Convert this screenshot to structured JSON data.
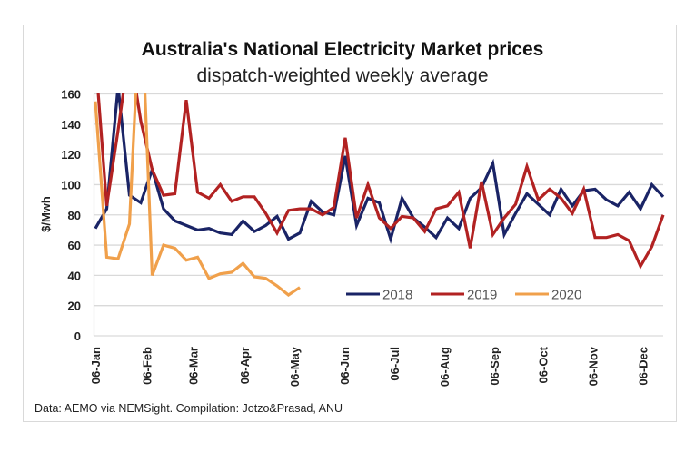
{
  "chart_data": {
    "type": "line",
    "title": "Australia's National Electricity Market prices",
    "subtitle": "dispatch-weighted weekly average",
    "xlabel": "",
    "ylabel": "$/Mwh",
    "ylim": [
      0,
      160
    ],
    "yticks": [
      0,
      20,
      40,
      60,
      80,
      100,
      120,
      140,
      160
    ],
    "grid": true,
    "legend_position": "bottom-right-inside",
    "x_ticks": [
      {
        "label": "06-Jan",
        "week": 0
      },
      {
        "label": "06-Feb",
        "week": 4.5
      },
      {
        "label": "06-Mar",
        "week": 8.6
      },
      {
        "label": "06-Apr",
        "week": 13.1
      },
      {
        "label": "06-May",
        "week": 17.5
      },
      {
        "label": "06-Jun",
        "week": 21.9
      },
      {
        "label": "06-Jul",
        "week": 26.3
      },
      {
        "label": "06-Aug",
        "week": 30.7
      },
      {
        "label": "06-Sep",
        "week": 35.1
      },
      {
        "label": "06-Oct",
        "week": 39.4
      },
      {
        "label": "06-Nov",
        "week": 43.8
      },
      {
        "label": "06-Dec",
        "week": 48.2
      }
    ],
    "x_weeks": 51,
    "series": [
      {
        "name": "2018",
        "color": "#1a2466",
        "values": [
          71,
          84,
          165,
          93,
          88,
          110,
          84,
          76,
          73,
          70,
          71,
          68,
          67,
          76,
          69,
          73,
          79,
          64,
          68,
          89,
          82,
          80,
          119,
          73,
          91,
          88,
          64,
          91,
          78,
          72,
          65,
          78,
          71,
          91,
          98,
          114,
          67,
          81,
          94,
          87,
          80,
          97,
          86,
          96,
          97,
          90,
          86,
          95,
          84,
          100,
          92
        ]
      },
      {
        "name": "2019",
        "color": "#b22222",
        "values": [
          185,
          86,
          136,
          190,
          142,
          110,
          93,
          94,
          156,
          95,
          91,
          100,
          89,
          92,
          92,
          81,
          68,
          83,
          84,
          84,
          80,
          85,
          131,
          78,
          100,
          78,
          71,
          79,
          78,
          69,
          84,
          86,
          95,
          58,
          102,
          67,
          78,
          87,
          112,
          90,
          97,
          91,
          81,
          97,
          65,
          65,
          67,
          63,
          46,
          59,
          80
        ]
      },
      {
        "name": "2020",
        "color": "#f0a04b",
        "values": [
          155,
          52,
          51,
          74,
          230,
          40,
          60,
          58,
          50,
          52,
          38,
          41,
          42,
          48,
          39,
          38,
          33,
          27,
          32
        ]
      }
    ]
  },
  "footer": {
    "source": "Data: AEMO via NEMSight. Compilation: Jotzo&Prasad, ANU"
  }
}
